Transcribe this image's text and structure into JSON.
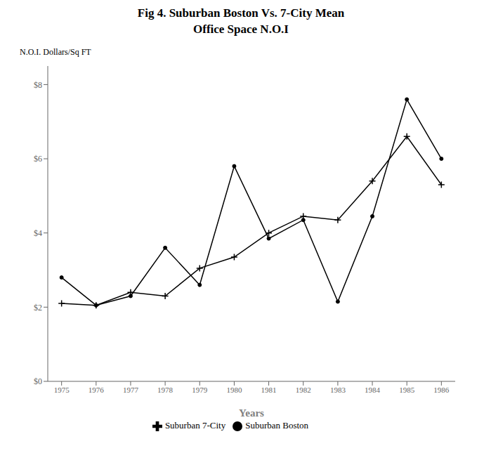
{
  "chart_data": {
    "type": "line",
    "title": "Fig 4. Suburban Boston Vs. 7-City Mean\nOffice Space N.O.I",
    "x_label": "Years",
    "y_label": "N.O.I. Dollars/Sq FT",
    "x": [
      1975,
      1976,
      1977,
      1978,
      1979,
      1980,
      1981,
      1982,
      1983,
      1984,
      1985,
      1986
    ],
    "series": [
      {
        "name": "Suburban Boston",
        "color": "#000000",
        "marker": "circle",
        "values": [
          2.8,
          2.05,
          2.3,
          3.6,
          2.6,
          5.8,
          3.85,
          4.35,
          2.15,
          4.45,
          7.6,
          6.0
        ]
      },
      {
        "name": "Suburban 7-City",
        "color": "#000000",
        "marker": "plus",
        "values": [
          2.1,
          2.05,
          2.4,
          2.3,
          3.05,
          3.35,
          4.0,
          4.45,
          4.35,
          5.4,
          6.6,
          5.3
        ]
      }
    ],
    "xlim": [
      1974.6,
      1986.4
    ],
    "xticks": [
      1975,
      1976,
      1977,
      1978,
      1979,
      1980,
      1981,
      1982,
      1983,
      1984,
      1985,
      1986
    ],
    "ylim": [
      0,
      8.5
    ],
    "yticks": [
      {
        "value": 0,
        "label": "$0"
      },
      {
        "value": 2,
        "label": "$2"
      },
      {
        "value": 4,
        "label": "$4"
      },
      {
        "value": 6,
        "label": "$6"
      },
      {
        "value": 8,
        "label": "$8"
      }
    ],
    "grid": false,
    "legend": "bottom"
  }
}
